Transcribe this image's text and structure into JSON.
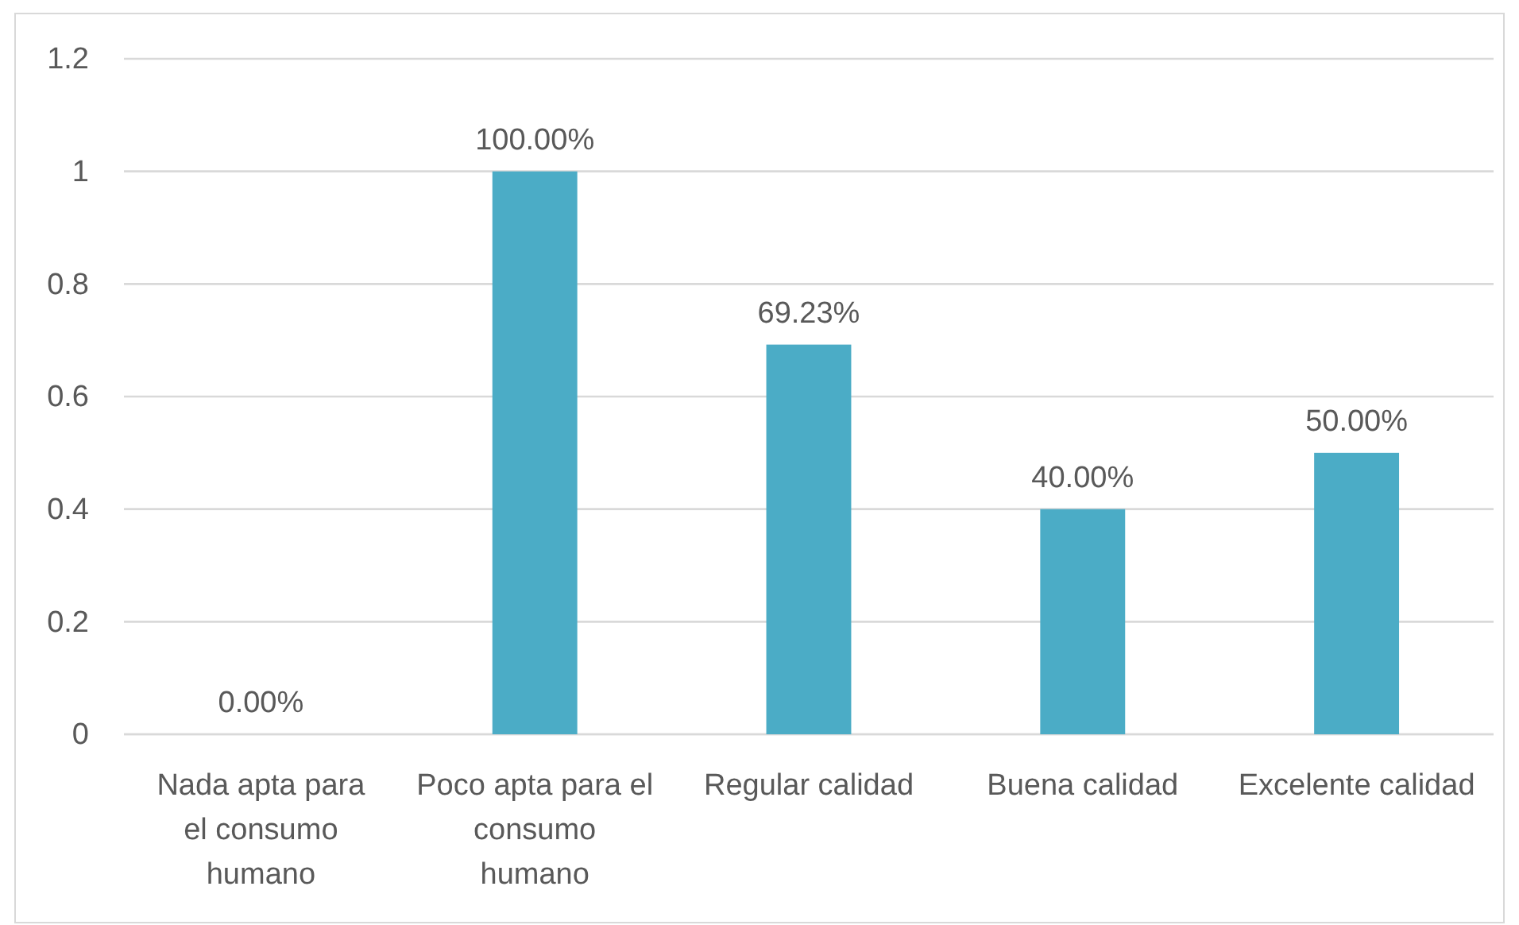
{
  "chart_data": {
    "type": "bar",
    "categories": [
      "Nada apta para el consumo humano",
      "Poco apta para el consumo humano",
      "Regular calidad",
      "Buena calidad",
      "Excelente calidad"
    ],
    "values": [
      0,
      1,
      0.6923,
      0.4,
      0.5
    ],
    "value_labels": [
      "0.00%",
      "100.00%",
      "69.23%",
      "40.00%",
      "50.00%"
    ],
    "color": "#4bacc6",
    "ylim": [
      0,
      1.2
    ],
    "yticks": [
      0,
      0.2,
      0.4,
      0.6,
      0.8,
      1,
      1.2
    ],
    "grid": "y"
  }
}
